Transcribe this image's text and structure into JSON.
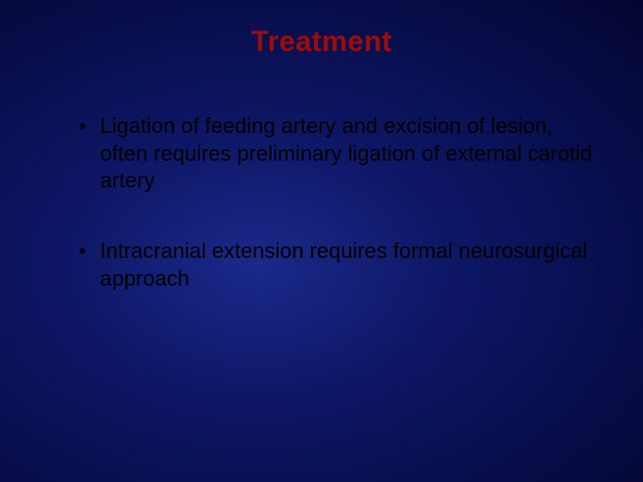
{
  "slide": {
    "title": "Treatment",
    "title_color": "#9a0d0d",
    "title_fontsize": 32,
    "bullet_color": "#000000",
    "bullet_fontsize": 24,
    "background_gradient": {
      "inner": "#1a2a8a",
      "mid": "#0e1766",
      "outer": "#040630"
    },
    "bullets": [
      "Ligation of feeding artery and excision of lesion, often requires preliminary ligation of external carotid artery",
      "Intracranial extension requires formal neurosurgical approach"
    ]
  }
}
